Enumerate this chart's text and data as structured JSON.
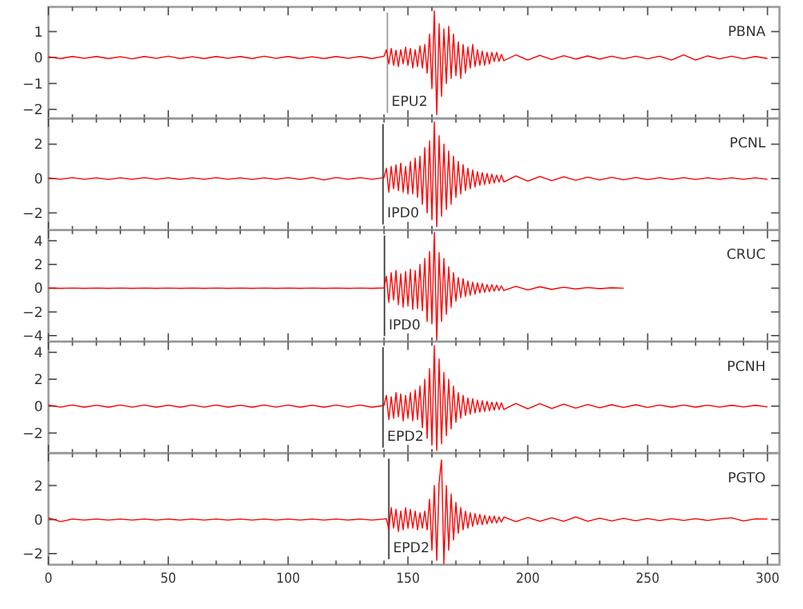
{
  "chart_data": [
    {
      "type": "line",
      "title": "PBNA",
      "tick_labels": "y",
      "xlim": [
        0,
        305
      ],
      "ylim": [
        -2.35,
        1.95
      ],
      "yticks": [
        -2,
        -1,
        0,
        1
      ],
      "xticks": [
        0,
        {
          "value": 10,
          "label": null
        },
        {
          "value": 20,
          "label": null
        },
        {
          "value": 30,
          "label": null
        },
        {
          "value": 40,
          "label": null
        },
        50,
        {
          "value": 60,
          "label": null
        },
        {
          "value": 70,
          "label": null
        },
        {
          "value": 80,
          "label": null
        },
        {
          "value": 90,
          "label": null
        },
        100,
        {
          "value": 110,
          "label": null
        },
        {
          "value": 120,
          "label": null
        },
        {
          "value": 130,
          "label": null
        },
        {
          "value": 140,
          "label": null
        },
        150,
        {
          "value": 160,
          "label": null
        },
        {
          "value": 170,
          "label": null
        },
        {
          "value": 180,
          "label": null
        },
        {
          "value": 190,
          "label": null
        },
        200,
        {
          "value": 210,
          "label": null
        },
        {
          "value": 220,
          "label": null
        },
        {
          "value": 230,
          "label": null
        },
        {
          "value": 240,
          "label": null
        },
        250,
        {
          "value": 260,
          "label": null
        },
        {
          "value": 270,
          "label": null
        },
        {
          "value": 280,
          "label": null
        },
        {
          "value": 290,
          "label": null
        },
        300
      ],
      "ref_lines": [
        {
          "axis": "x",
          "value": 141.4,
          "label": "EPU2",
          "color": "#999999"
        }
      ],
      "x": [
        0,
        5,
        10,
        15,
        20,
        25,
        30,
        35,
        40,
        45,
        50,
        55,
        60,
        65,
        70,
        75,
        80,
        85,
        90,
        95,
        100,
        105,
        110,
        115,
        120,
        125,
        130,
        135,
        140,
        141,
        142,
        143,
        144,
        145,
        146,
        147,
        148,
        149,
        150,
        151,
        152,
        153,
        154,
        155,
        156,
        157,
        158,
        159,
        160,
        161,
        162,
        163,
        164,
        165,
        166,
        167,
        168,
        169,
        170,
        171,
        172,
        173,
        174,
        175,
        176,
        177,
        178,
        179,
        180,
        181,
        182,
        183,
        184,
        185,
        186,
        187,
        188,
        189,
        190,
        195,
        200,
        205,
        210,
        215,
        220,
        225,
        230,
        235,
        240,
        245,
        250,
        255,
        260,
        265,
        270,
        275,
        280,
        285,
        290,
        295,
        300
      ],
      "series": [
        {
          "color": "#ff0000",
          "values": [
            0.03,
            -0.04,
            0.04,
            -0.03,
            0.04,
            -0.04,
            0.03,
            -0.05,
            0.04,
            -0.03,
            0.05,
            -0.04,
            0.03,
            -0.04,
            0.04,
            -0.03,
            0.04,
            -0.04,
            0.05,
            -0.03,
            0.04,
            -0.04,
            0.03,
            -0.04,
            0.04,
            -0.03,
            0.04,
            -0.04,
            0.05,
            0.3,
            -0.25,
            0.35,
            -0.3,
            0.28,
            -0.35,
            0.3,
            -0.25,
            0.4,
            -0.3,
            0.35,
            -0.4,
            0.3,
            -0.35,
            0.45,
            -0.4,
            0.5,
            -0.6,
            0.9,
            -1.2,
            1.8,
            -2.2,
            1.3,
            -1.5,
            1.1,
            -1.0,
            1.2,
            -0.8,
            0.9,
            -0.7,
            0.6,
            -0.8,
            0.5,
            -0.6,
            0.4,
            -0.4,
            0.5,
            -0.35,
            0.3,
            -0.3,
            0.25,
            -0.3,
            0.2,
            -0.25,
            0.2,
            -0.15,
            0.2,
            -0.15,
            0.12,
            -0.12,
            0.1,
            -0.1,
            0.08,
            -0.08,
            0.07,
            -0.06,
            0.06,
            -0.06,
            0.05,
            -0.05,
            0.05,
            -0.05,
            0.05,
            -0.1,
            0.1,
            -0.1,
            0.06,
            -0.05,
            0.05,
            -0.05,
            0.04,
            -0.04
          ]
        }
      ]
    },
    {
      "type": "line",
      "title": "PCNL",
      "tick_labels": "y",
      "xlim": [
        0,
        305
      ],
      "ylim": [
        -3,
        3.5
      ],
      "yticks": [
        -2,
        0,
        2
      ],
      "xticks": [
        0,
        {
          "value": 10,
          "label": null
        },
        {
          "value": 20,
          "label": null
        },
        {
          "value": 30,
          "label": null
        },
        {
          "value": 40,
          "label": null
        },
        50,
        {
          "value": 60,
          "label": null
        },
        {
          "value": 70,
          "label": null
        },
        {
          "value": 80,
          "label": null
        },
        {
          "value": 90,
          "label": null
        },
        100,
        {
          "value": 110,
          "label": null
        },
        {
          "value": 120,
          "label": null
        },
        {
          "value": 130,
          "label": null
        },
        {
          "value": 140,
          "label": null
        },
        150,
        {
          "value": 160,
          "label": null
        },
        {
          "value": 170,
          "label": null
        },
        {
          "value": 180,
          "label": null
        },
        {
          "value": 190,
          "label": null
        },
        200,
        {
          "value": 210,
          "label": null
        },
        {
          "value": 220,
          "label": null
        },
        {
          "value": 230,
          "label": null
        },
        {
          "value": 240,
          "label": null
        },
        250,
        {
          "value": 260,
          "label": null
        },
        {
          "value": 270,
          "label": null
        },
        {
          "value": 280,
          "label": null
        },
        {
          "value": 290,
          "label": null
        },
        300
      ],
      "ref_lines": [
        {
          "axis": "x",
          "value": 139.6,
          "label": "IPD0",
          "color": "#333333"
        }
      ],
      "x": [
        0,
        5,
        10,
        15,
        20,
        25,
        30,
        35,
        40,
        45,
        50,
        55,
        60,
        65,
        70,
        75,
        80,
        85,
        90,
        95,
        100,
        105,
        110,
        115,
        120,
        125,
        130,
        135,
        140,
        141,
        142,
        143,
        144,
        145,
        146,
        147,
        148,
        149,
        150,
        151,
        152,
        153,
        154,
        155,
        156,
        157,
        158,
        159,
        160,
        161,
        162,
        163,
        164,
        165,
        166,
        167,
        168,
        169,
        170,
        171,
        172,
        173,
        174,
        175,
        176,
        177,
        178,
        179,
        180,
        181,
        182,
        183,
        184,
        185,
        186,
        187,
        188,
        189,
        190,
        195,
        200,
        205,
        210,
        215,
        220,
        225,
        230,
        235,
        240,
        245,
        250,
        255,
        260,
        265,
        270,
        275,
        280,
        285,
        290,
        295,
        300
      ],
      "series": [
        {
          "color": "#ff0000",
          "values": [
            0.04,
            -0.04,
            0.05,
            -0.04,
            0.04,
            -0.05,
            0.04,
            -0.04,
            0.05,
            -0.04,
            0.04,
            -0.05,
            0.04,
            -0.04,
            0.05,
            -0.04,
            0.04,
            -0.05,
            0.04,
            -0.04,
            0.05,
            -0.05,
            0.06,
            -0.08,
            0.06,
            -0.04,
            0.05,
            -0.04,
            0.05,
            0.6,
            -0.8,
            0.7,
            -0.6,
            0.8,
            -0.7,
            0.9,
            -0.8,
            0.7,
            -0.9,
            1.0,
            -0.9,
            1.2,
            -1.1,
            1.3,
            -1.5,
            1.8,
            -2.0,
            2.2,
            -2.4,
            3.3,
            -2.8,
            2.5,
            -2.2,
            2.0,
            -1.8,
            1.6,
            -1.5,
            1.3,
            -1.1,
            1.0,
            -0.9,
            0.8,
            -0.7,
            0.6,
            -0.6,
            0.5,
            -0.5,
            0.4,
            -0.4,
            0.35,
            -0.35,
            0.3,
            -0.3,
            0.25,
            -0.25,
            0.2,
            -0.2,
            0.2,
            -0.2,
            0.15,
            -0.15,
            0.12,
            -0.12,
            0.1,
            -0.1,
            0.08,
            -0.08,
            0.07,
            -0.07,
            0.06,
            -0.06,
            0.05,
            -0.05,
            0.05,
            -0.05,
            0.04,
            -0.04,
            0.04,
            -0.04,
            0.04,
            -0.04
          ]
        }
      ]
    },
    {
      "type": "line",
      "title": "CRUC",
      "tick_labels": "y",
      "xlim": [
        0,
        305
      ],
      "ylim": [
        -4.5,
        4.9
      ],
      "yticks": [
        -4,
        -2,
        0,
        2,
        4
      ],
      "xticks": [
        0,
        {
          "value": 10,
          "label": null
        },
        {
          "value": 20,
          "label": null
        },
        {
          "value": 30,
          "label": null
        },
        {
          "value": 40,
          "label": null
        },
        50,
        {
          "value": 60,
          "label": null
        },
        {
          "value": 70,
          "label": null
        },
        {
          "value": 80,
          "label": null
        },
        {
          "value": 90,
          "label": null
        },
        100,
        {
          "value": 110,
          "label": null
        },
        {
          "value": 120,
          "label": null
        },
        {
          "value": 130,
          "label": null
        },
        {
          "value": 140,
          "label": null
        },
        150,
        {
          "value": 160,
          "label": null
        },
        {
          "value": 170,
          "label": null
        },
        {
          "value": 180,
          "label": null
        },
        {
          "value": 190,
          "label": null
        },
        200,
        {
          "value": 210,
          "label": null
        },
        {
          "value": 220,
          "label": null
        },
        {
          "value": 230,
          "label": null
        },
        {
          "value": 240,
          "label": null
        },
        250,
        {
          "value": 260,
          "label": null
        },
        {
          "value": 270,
          "label": null
        },
        {
          "value": 280,
          "label": null
        },
        {
          "value": 290,
          "label": null
        },
        300
      ],
      "ref_lines": [
        {
          "axis": "x",
          "value": 140.2,
          "label": "IPD0",
          "color": "#333333"
        }
      ],
      "x": [
        0,
        5,
        10,
        15,
        20,
        25,
        30,
        35,
        40,
        45,
        50,
        55,
        60,
        65,
        70,
        75,
        80,
        85,
        90,
        95,
        100,
        105,
        110,
        115,
        120,
        125,
        130,
        135,
        140,
        141,
        142,
        143,
        144,
        145,
        146,
        147,
        148,
        149,
        150,
        151,
        152,
        153,
        154,
        155,
        156,
        157,
        158,
        159,
        160,
        161,
        162,
        163,
        164,
        165,
        166,
        167,
        168,
        169,
        170,
        171,
        172,
        173,
        174,
        175,
        176,
        177,
        178,
        179,
        180,
        181,
        182,
        183,
        184,
        185,
        186,
        187,
        188,
        189,
        190,
        195,
        200,
        205,
        210,
        215,
        220,
        225,
        230,
        235,
        240
      ],
      "series": [
        {
          "color": "#ff0000",
          "values": [
            0.01,
            -0.01,
            0.01,
            -0.01,
            0.01,
            -0.01,
            0.01,
            -0.01,
            0.01,
            -0.01,
            0.01,
            -0.01,
            0.01,
            -0.01,
            0.01,
            -0.01,
            0.01,
            -0.01,
            0.01,
            -0.01,
            0.01,
            -0.01,
            0.01,
            -0.01,
            0.01,
            -0.01,
            0.01,
            -0.01,
            0.02,
            1.0,
            -1.2,
            1.3,
            -1.0,
            1.5,
            -1.4,
            1.2,
            -1.6,
            1.4,
            -1.5,
            1.6,
            -1.8,
            1.5,
            -1.7,
            2.0,
            -1.9,
            2.5,
            -2.8,
            3.1,
            -3.0,
            4.7,
            -4.4,
            3.0,
            -2.8,
            2.5,
            -2.2,
            1.8,
            -1.6,
            1.3,
            -1.1,
            0.9,
            -0.8,
            0.8,
            -0.7,
            0.6,
            -0.6,
            0.5,
            -0.5,
            0.45,
            -0.4,
            0.4,
            -0.35,
            0.3,
            -0.3,
            0.3,
            -0.25,
            0.25,
            -0.2,
            0.2,
            -0.2,
            0.15,
            -0.15,
            0.12,
            -0.1,
            0.08,
            -0.07,
            0.05,
            -0.04,
            0.03,
            0
          ]
        }
      ]
    },
    {
      "type": "line",
      "title": "PCNH",
      "tick_labels": "y",
      "xlim": [
        0,
        305
      ],
      "ylim": [
        -3.5,
        4.8
      ],
      "yticks": [
        -2,
        0,
        2,
        4
      ],
      "xticks": [
        0,
        {
          "value": 10,
          "label": null
        },
        {
          "value": 20,
          "label": null
        },
        {
          "value": 30,
          "label": null
        },
        {
          "value": 40,
          "label": null
        },
        50,
        {
          "value": 60,
          "label": null
        },
        {
          "value": 70,
          "label": null
        },
        {
          "value": 80,
          "label": null
        },
        {
          "value": 90,
          "label": null
        },
        100,
        {
          "value": 110,
          "label": null
        },
        {
          "value": 120,
          "label": null
        },
        {
          "value": 130,
          "label": null
        },
        {
          "value": 140,
          "label": null
        },
        150,
        {
          "value": 160,
          "label": null
        },
        {
          "value": 170,
          "label": null
        },
        {
          "value": 180,
          "label": null
        },
        {
          "value": 190,
          "label": null
        },
        200,
        {
          "value": 210,
          "label": null
        },
        {
          "value": 220,
          "label": null
        },
        {
          "value": 230,
          "label": null
        },
        {
          "value": 240,
          "label": null
        },
        250,
        {
          "value": 260,
          "label": null
        },
        {
          "value": 270,
          "label": null
        },
        {
          "value": 280,
          "label": null
        },
        {
          "value": 290,
          "label": null
        },
        300
      ],
      "ref_lines": [
        {
          "axis": "x",
          "value": 139.6,
          "label": "EPD2",
          "color": "#333333"
        }
      ],
      "x": [
        0,
        5,
        10,
        15,
        20,
        25,
        30,
        35,
        40,
        45,
        50,
        55,
        60,
        65,
        70,
        75,
        80,
        85,
        90,
        95,
        100,
        105,
        110,
        115,
        120,
        125,
        130,
        135,
        140,
        141,
        142,
        143,
        144,
        145,
        146,
        147,
        148,
        149,
        150,
        151,
        152,
        153,
        154,
        155,
        156,
        157,
        158,
        159,
        160,
        161,
        162,
        163,
        164,
        165,
        166,
        167,
        168,
        169,
        170,
        171,
        172,
        173,
        174,
        175,
        176,
        177,
        178,
        179,
        180,
        181,
        182,
        183,
        184,
        185,
        186,
        187,
        188,
        189,
        190,
        195,
        200,
        205,
        210,
        215,
        220,
        225,
        230,
        235,
        240,
        245,
        250,
        255,
        260,
        265,
        270,
        275,
        280,
        285,
        290,
        295,
        300
      ],
      "series": [
        {
          "color": "#ff0000",
          "values": [
            0.08,
            -0.07,
            0.08,
            -0.08,
            0.07,
            -0.08,
            0.08,
            -0.07,
            0.08,
            -0.08,
            0.07,
            -0.08,
            0.08,
            -0.07,
            0.08,
            -0.08,
            0.07,
            -0.08,
            0.08,
            -0.07,
            0.08,
            -0.08,
            0.07,
            -0.08,
            0.08,
            -0.07,
            0.08,
            -0.08,
            0.05,
            0.8,
            -1.0,
            0.7,
            -0.9,
            1.0,
            -0.8,
            0.9,
            -1.1,
            0.8,
            -0.9,
            1.0,
            -1.1,
            1.2,
            -1.0,
            1.5,
            -1.6,
            2.0,
            -2.4,
            2.8,
            -2.9,
            4.5,
            -3.3,
            3.5,
            -2.8,
            2.5,
            -2.2,
            2.0,
            -1.7,
            1.5,
            -1.2,
            1.0,
            -0.9,
            0.8,
            -0.7,
            0.6,
            -0.6,
            0.55,
            -0.5,
            0.45,
            -0.45,
            0.4,
            -0.4,
            0.35,
            -0.35,
            0.3,
            -0.3,
            0.3,
            -0.25,
            0.25,
            -0.25,
            0.2,
            -0.2,
            0.18,
            -0.18,
            0.15,
            -0.15,
            0.12,
            -0.12,
            0.1,
            -0.1,
            0.1,
            -0.1,
            0.08,
            -0.08,
            0.08,
            -0.08,
            0.07,
            -0.07,
            0.06,
            -0.06,
            0.06,
            -0.06
          ]
        }
      ]
    },
    {
      "type": "line",
      "title": "PGTO",
      "xlim": [
        0,
        305
      ],
      "ylim": [
        -2.65,
        3.9
      ],
      "yticks": [
        -2,
        0,
        2
      ],
      "xticks": [
        0,
        {
          "value": 10,
          "label": null
        },
        {
          "value": 20,
          "label": null
        },
        {
          "value": 30,
          "label": null
        },
        {
          "value": 40,
          "label": null
        },
        50,
        {
          "value": 60,
          "label": null
        },
        {
          "value": 70,
          "label": null
        },
        {
          "value": 80,
          "label": null
        },
        {
          "value": 90,
          "label": null
        },
        100,
        {
          "value": 110,
          "label": null
        },
        {
          "value": 120,
          "label": null
        },
        {
          "value": 130,
          "label": null
        },
        {
          "value": 140,
          "label": null
        },
        150,
        {
          "value": 160,
          "label": null
        },
        {
          "value": 170,
          "label": null
        },
        {
          "value": 180,
          "label": null
        },
        {
          "value": 190,
          "label": null
        },
        200,
        {
          "value": 210,
          "label": null
        },
        {
          "value": 220,
          "label": null
        },
        {
          "value": 230,
          "label": null
        },
        {
          "value": 240,
          "label": null
        },
        250,
        {
          "value": 260,
          "label": null
        },
        {
          "value": 270,
          "label": null
        },
        {
          "value": 280,
          "label": null
        },
        {
          "value": 290,
          "label": null
        },
        300
      ],
      "ref_lines": [
        {
          "axis": "x",
          "value": 142,
          "label": "EPD2",
          "color": "#333333"
        }
      ],
      "x": [
        0,
        5,
        10,
        15,
        20,
        25,
        30,
        35,
        40,
        45,
        50,
        55,
        60,
        65,
        70,
        75,
        80,
        85,
        90,
        95,
        100,
        105,
        110,
        115,
        120,
        125,
        130,
        135,
        140,
        141,
        142,
        143,
        144,
        145,
        146,
        147,
        148,
        149,
        150,
        151,
        152,
        153,
        154,
        155,
        156,
        157,
        158,
        159,
        160,
        161,
        162,
        163,
        164,
        165,
        166,
        167,
        168,
        169,
        170,
        171,
        172,
        173,
        174,
        175,
        176,
        177,
        178,
        179,
        180,
        181,
        182,
        183,
        184,
        185,
        186,
        187,
        188,
        189,
        190,
        195,
        200,
        205,
        210,
        215,
        220,
        225,
        230,
        235,
        240,
        245,
        250,
        255,
        260,
        265,
        270,
        275,
        280,
        285,
        290,
        295,
        300
      ],
      "series": [
        {
          "color": "#ff0000",
          "values": [
            0.1,
            -0.12,
            0.03,
            -0.03,
            0.03,
            -0.03,
            0.03,
            -0.03,
            0.03,
            -0.03,
            0.03,
            -0.03,
            0.03,
            -0.03,
            0.03,
            -0.03,
            0.03,
            -0.03,
            0.03,
            -0.03,
            0.03,
            -0.03,
            0.03,
            -0.03,
            0.03,
            -0.03,
            0.03,
            -0.03,
            0.03,
            0.05,
            -0.6,
            0.7,
            -0.5,
            0.6,
            -0.7,
            0.5,
            -0.6,
            0.7,
            -0.5,
            0.6,
            -0.5,
            0.5,
            -0.6,
            0.4,
            -0.5,
            0.5,
            -0.6,
            1.2,
            -1.8,
            2.0,
            -2.4,
            2.2,
            3.5,
            -2.6,
            2.0,
            -1.8,
            1.5,
            -1.2,
            1.0,
            -0.8,
            0.7,
            -0.6,
            0.5,
            -0.5,
            0.4,
            -0.4,
            0.35,
            -0.3,
            0.3,
            -0.3,
            0.25,
            -0.25,
            0.2,
            -0.2,
            0.2,
            -0.2,
            0.15,
            -0.15,
            0.15,
            -0.12,
            0.12,
            -0.1,
            0.1,
            -0.1,
            0.15,
            -0.1,
            0.08,
            -0.08,
            0.07,
            -0.07,
            0.06,
            -0.06,
            0.05,
            -0.05,
            0.05,
            -0.05,
            0.04,
            0.1,
            -0.08,
            0.04,
            0.03
          ]
        }
      ]
    }
  ]
}
